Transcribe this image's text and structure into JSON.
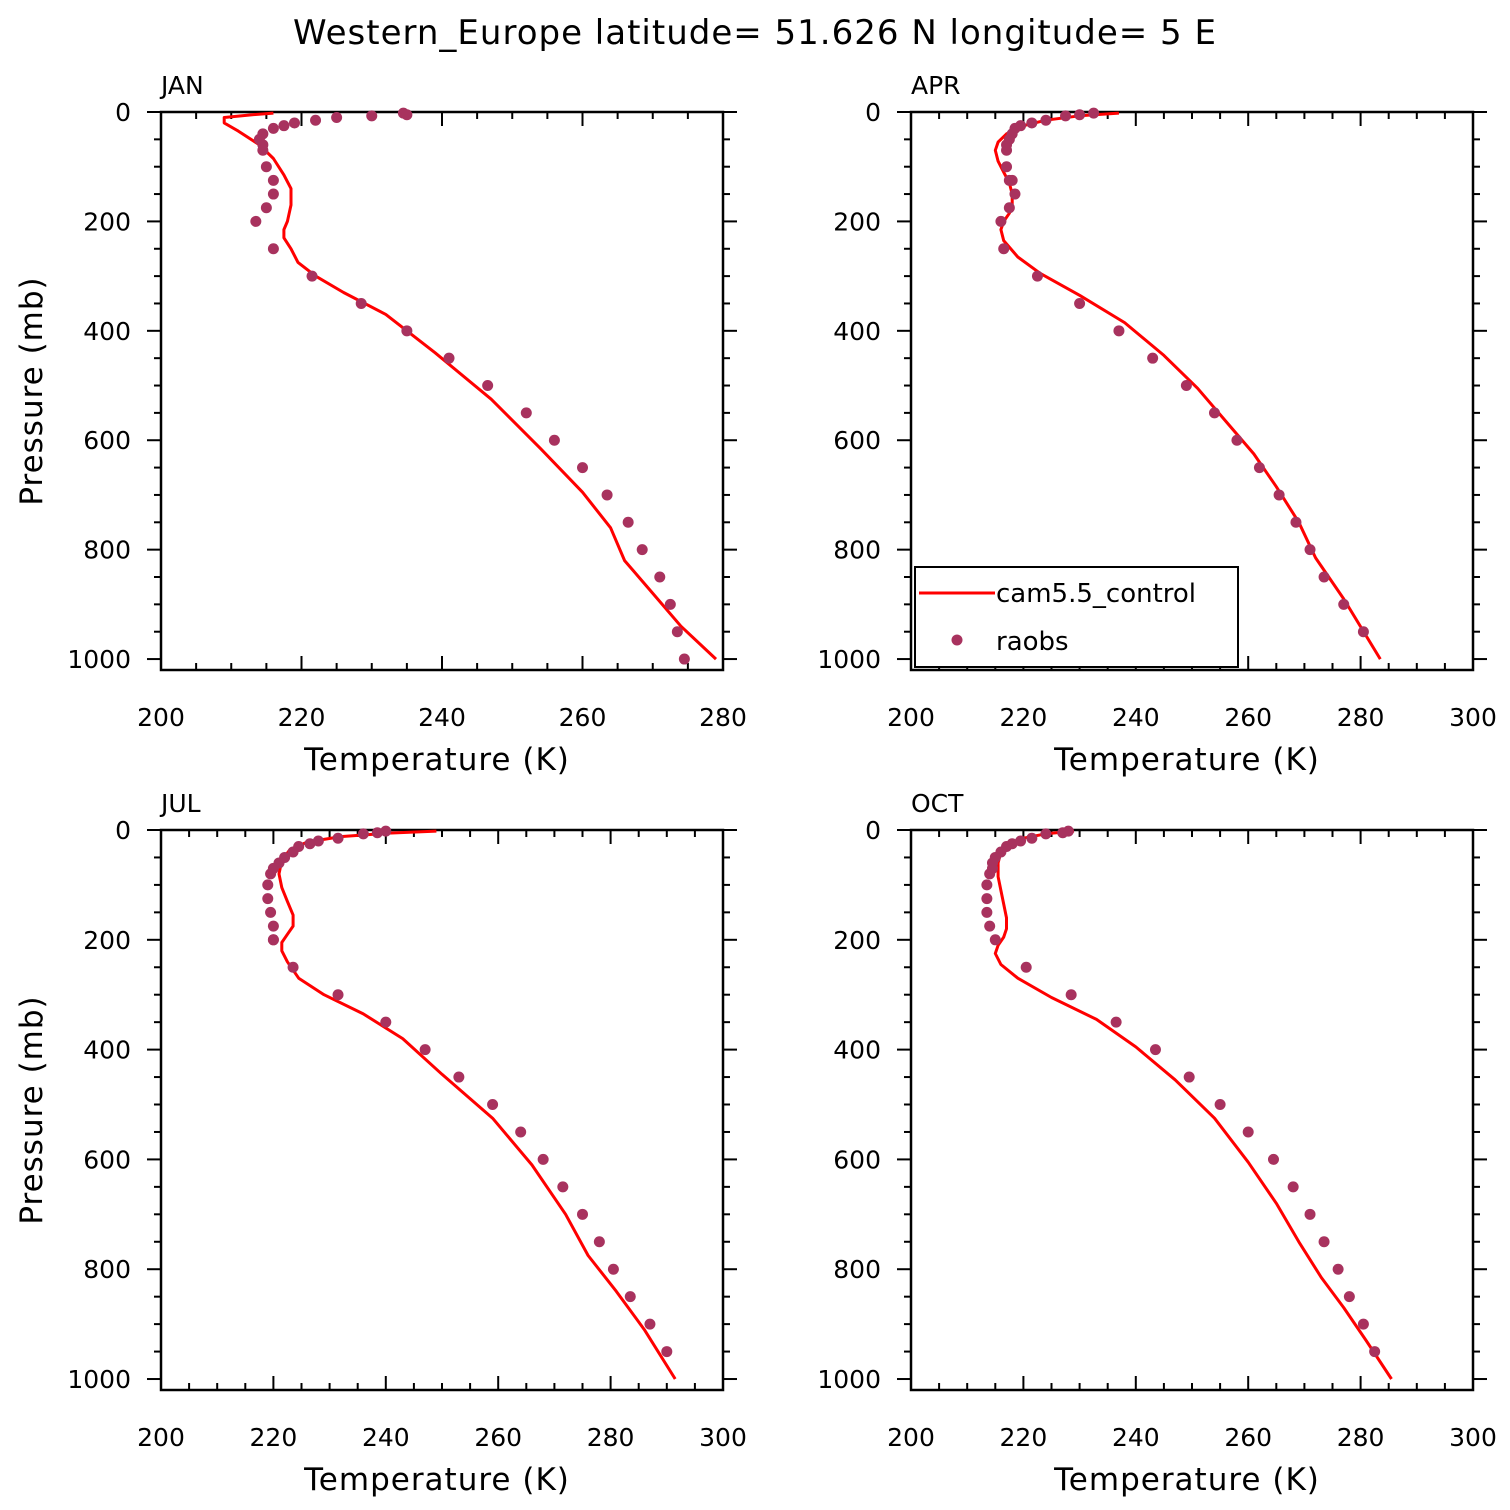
{
  "title": "Western_Europe  latitude= 51.626 N longitude= 5 E",
  "legend": {
    "model_label": "cam5.5_control",
    "obs_label": "raobs"
  },
  "colors": {
    "model_line": "#ff0000",
    "obs_markers": "#a8325e",
    "axes": "#000000",
    "background": "#ffffff"
  },
  "chart_data": [
    {
      "type": "line",
      "panel": "JAN",
      "title": "JAN",
      "xlabel": "Temperature (K)",
      "ylabel": "Pressure (mb)",
      "xlim": [
        200,
        280
      ],
      "ylim": [
        1020,
        0
      ],
      "xticks": [
        200,
        220,
        240,
        260,
        280
      ],
      "yticks": [
        0,
        200,
        400,
        600,
        800,
        1000
      ],
      "grid": false,
      "series": [
        {
          "name": "cam5.5_control",
          "style": "line",
          "x": [
            216,
            213,
            209,
            209,
            211,
            214,
            216,
            217.5,
            218.5,
            218.5,
            218,
            217.5,
            217.5,
            218.5,
            219.5,
            222,
            226,
            232,
            239,
            247,
            254,
            260,
            264,
            266,
            270,
            274,
            279
          ],
          "y": [
            2,
            5,
            10,
            20,
            35,
            60,
            85,
            115,
            140,
            170,
            200,
            215,
            230,
            250,
            275,
            300,
            330,
            370,
            440,
            525,
            615,
            695,
            760,
            820,
            880,
            940,
            1000
          ]
        },
        {
          "name": "raobs",
          "style": "markers",
          "x": [
            234.5,
            235,
            230,
            225,
            222,
            219,
            217.5,
            216,
            214.5,
            214,
            214.5,
            214.5,
            215,
            216,
            216,
            215,
            213.5,
            216,
            221.5,
            228.5,
            235,
            241,
            246.5,
            252,
            256,
            260,
            263.5,
            266.5,
            268.5,
            271,
            272.5,
            273.5,
            274.5
          ],
          "y": [
            2,
            5,
            7,
            10,
            15,
            20,
            25,
            30,
            40,
            50,
            60,
            70,
            100,
            125,
            150,
            175,
            200,
            250,
            300,
            350,
            400,
            450,
            500,
            550,
            600,
            650,
            700,
            750,
            800,
            850,
            900,
            950,
            1000
          ]
        }
      ]
    },
    {
      "type": "line",
      "panel": "APR",
      "title": "APR",
      "xlabel": "Temperature (K)",
      "ylabel": "",
      "xlim": [
        200,
        300
      ],
      "ylim": [
        1020,
        0
      ],
      "xticks": [
        200,
        220,
        240,
        260,
        280,
        300
      ],
      "yticks": [
        0,
        200,
        400,
        600,
        800,
        1000
      ],
      "grid": false,
      "series": [
        {
          "name": "cam5.5_control",
          "style": "line",
          "x": [
            237,
            230,
            224,
            220,
            217,
            215.5,
            215,
            215.5,
            216.5,
            217.5,
            218,
            218,
            217.5,
            216.5,
            216,
            216.5,
            219,
            223,
            230,
            238,
            245,
            251,
            256,
            261,
            265,
            269,
            272,
            277,
            283.5
          ],
          "y": [
            2,
            7,
            15,
            25,
            40,
            55,
            70,
            90,
            110,
            130,
            150,
            170,
            185,
            200,
            215,
            235,
            265,
            295,
            335,
            385,
            445,
            505,
            565,
            625,
            685,
            750,
            815,
            890,
            1000
          ]
        },
        {
          "name": "raobs",
          "style": "markers",
          "x": [
            232.5,
            230,
            227.5,
            224,
            221.5,
            219.5,
            218.5,
            218,
            217.5,
            217,
            217,
            217,
            217.5,
            218,
            218.5,
            217.5,
            216,
            216.5,
            222.5,
            230,
            237,
            243,
            249,
            254,
            258,
            262,
            265.5,
            268.5,
            271,
            273.5,
            277,
            280.5
          ],
          "y": [
            2,
            5,
            7,
            15,
            20,
            25,
            30,
            40,
            50,
            60,
            70,
            100,
            125,
            125,
            150,
            175,
            200,
            250,
            300,
            350,
            400,
            450,
            500,
            550,
            600,
            650,
            700,
            750,
            800,
            850,
            900,
            950
          ]
        }
      ]
    },
    {
      "type": "line",
      "panel": "JUL",
      "title": "JUL",
      "xlabel": "Temperature (K)",
      "ylabel": "Pressure (mb)",
      "xlim": [
        200,
        300
      ],
      "ylim": [
        1020,
        0
      ],
      "xticks": [
        200,
        220,
        240,
        260,
        280,
        300
      ],
      "yticks": [
        0,
        200,
        400,
        600,
        800,
        1000
      ],
      "grid": false,
      "series": [
        {
          "name": "cam5.5_control",
          "style": "line",
          "x": [
            249,
            240,
            232,
            226,
            223,
            221.5,
            221,
            221.5,
            222.5,
            223.5,
            223.5,
            222.5,
            221.5,
            221.5,
            222.5,
            224.5,
            229,
            236,
            243,
            250,
            259,
            266,
            272,
            276,
            281,
            286,
            291.5
          ],
          "y": [
            2,
            6,
            12,
            22,
            35,
            55,
            80,
            105,
            130,
            155,
            175,
            190,
            205,
            220,
            240,
            270,
            300,
            335,
            380,
            445,
            525,
            610,
            700,
            775,
            840,
            910,
            1000
          ]
        },
        {
          "name": "raobs",
          "style": "markers",
          "x": [
            240,
            238.5,
            236,
            231.5,
            228,
            226.5,
            224.5,
            223.5,
            222,
            221,
            220,
            219.5,
            219,
            219,
            219.5,
            220,
            220,
            220,
            223.5,
            231.5,
            240,
            247,
            253,
            259,
            264,
            268,
            271.5,
            275,
            278,
            280.5,
            283.5,
            287,
            290
          ],
          "y": [
            2,
            5,
            7,
            15,
            20,
            25,
            30,
            40,
            50,
            60,
            70,
            80,
            100,
            125,
            150,
            175,
            200,
            200,
            250,
            300,
            350,
            400,
            450,
            500,
            550,
            600,
            650,
            700,
            750,
            800,
            850,
            900,
            950
          ]
        }
      ]
    },
    {
      "type": "line",
      "panel": "OCT",
      "title": "OCT",
      "xlabel": "Temperature (K)",
      "ylabel": "",
      "xlim": [
        200,
        300
      ],
      "ylim": [
        1020,
        0
      ],
      "xticks": [
        200,
        220,
        240,
        260,
        280,
        300
      ],
      "yticks": [
        0,
        200,
        400,
        600,
        800,
        1000
      ],
      "grid": false,
      "series": [
        {
          "name": "cam5.5_control",
          "style": "line",
          "x": [
            229,
            224,
            220,
            217.5,
            216,
            215.5,
            215.5,
            216,
            216.5,
            217,
            217,
            216.5,
            215.5,
            215,
            216,
            219,
            225,
            233,
            240,
            247,
            254,
            260,
            265,
            269,
            273,
            277,
            281,
            285.5
          ],
          "y": [
            2,
            7,
            15,
            25,
            40,
            60,
            85,
            110,
            135,
            160,
            180,
            195,
            210,
            225,
            245,
            270,
            305,
            345,
            395,
            455,
            525,
            605,
            680,
            750,
            815,
            870,
            930,
            1000
          ]
        },
        {
          "name": "raobs",
          "style": "markers",
          "x": [
            228,
            227,
            224,
            221.5,
            219.5,
            218,
            217,
            216,
            215,
            214.5,
            214.5,
            214,
            213.5,
            213.5,
            213.5,
            214,
            215,
            220.5,
            228.5,
            236.5,
            243.5,
            249.5,
            255,
            260,
            264.5,
            268,
            271,
            273.5,
            276,
            278,
            280.5,
            282.5
          ],
          "y": [
            2,
            5,
            7,
            15,
            20,
            25,
            30,
            40,
            50,
            60,
            70,
            80,
            100,
            125,
            150,
            175,
            200,
            250,
            300,
            350,
            400,
            450,
            500,
            550,
            600,
            650,
            700,
            750,
            800,
            850,
            900,
            950
          ]
        }
      ]
    }
  ]
}
